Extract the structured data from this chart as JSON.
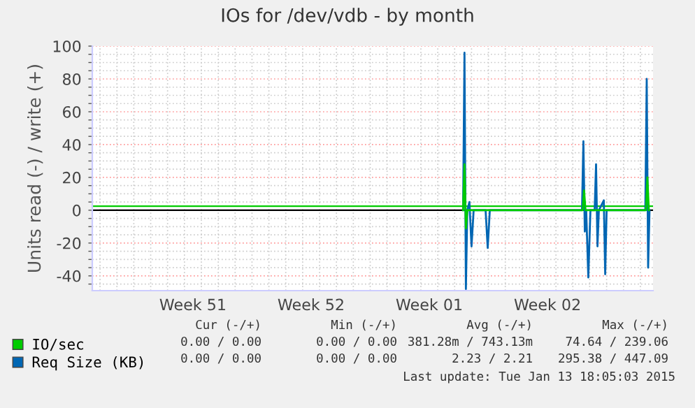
{
  "chart_data": {
    "type": "line",
    "title": "IOs for /dev/vdb - by month",
    "ylabel": "Units read (-) / write (+)",
    "xlim": [
      "2014-12-12T13:00",
      "2015-01-14T18:00"
    ],
    "xticks": [
      {
        "value": "2014-12-13",
        "label": null
      },
      {
        "value": "2014-12-14",
        "label": null
      },
      {
        "value": "2014-12-15",
        "label": null
      },
      {
        "value": "2014-12-16",
        "label": null
      },
      {
        "value": "2014-12-17",
        "label": null
      },
      {
        "value": "2014-12-18",
        "label": null
      },
      {
        "value": "2014-12-18T12:00",
        "label": "Week 51"
      },
      {
        "value": "2014-12-19",
        "label": null
      },
      {
        "value": "2014-12-20",
        "label": null
      },
      {
        "value": "2014-12-21",
        "label": null
      },
      {
        "value": "2014-12-22",
        "label": null
      },
      {
        "value": "2014-12-23",
        "label": null
      },
      {
        "value": "2014-12-24",
        "label": null
      },
      {
        "value": "2014-12-25",
        "label": null
      },
      {
        "value": "2014-12-25T12:00",
        "label": "Week 52"
      },
      {
        "value": "2014-12-26",
        "label": null
      },
      {
        "value": "2014-12-27",
        "label": null
      },
      {
        "value": "2014-12-28",
        "label": null
      },
      {
        "value": "2014-12-29",
        "label": null
      },
      {
        "value": "2014-12-30",
        "label": null
      },
      {
        "value": "2014-12-31",
        "label": null
      },
      {
        "value": "2015-01-01",
        "label": null
      },
      {
        "value": "2015-01-01T12:00",
        "label": "Week 01"
      },
      {
        "value": "2015-01-02",
        "label": null
      },
      {
        "value": "2015-01-03",
        "label": null
      },
      {
        "value": "2015-01-04",
        "label": null
      },
      {
        "value": "2015-01-05",
        "label": null
      },
      {
        "value": "2015-01-06",
        "label": null
      },
      {
        "value": "2015-01-07",
        "label": null
      },
      {
        "value": "2015-01-08",
        "label": null
      },
      {
        "value": "2015-01-08T12:00",
        "label": "Week 02"
      },
      {
        "value": "2015-01-09",
        "label": null
      },
      {
        "value": "2015-01-10",
        "label": null
      },
      {
        "value": "2015-01-11",
        "label": null
      },
      {
        "value": "2015-01-12",
        "label": null
      },
      {
        "value": "2015-01-13",
        "label": null
      },
      {
        "value": "2015-01-14",
        "label": null
      }
    ],
    "ylim": [
      -49,
      100
    ],
    "yticks": [
      {
        "value": -45,
        "label": null
      },
      -40,
      {
        "value": -35,
        "label": null
      },
      {
        "value": -30,
        "label": null
      },
      {
        "value": -25,
        "label": null
      },
      -20,
      {
        "value": -15,
        "label": null
      },
      {
        "value": -10,
        "label": null
      },
      {
        "value": -5,
        "label": null
      },
      0,
      {
        "value": 5,
        "label": null
      },
      {
        "value": 10,
        "label": null
      },
      {
        "value": 15,
        "label": null
      },
      20,
      {
        "value": 25,
        "label": null
      },
      {
        "value": 30,
        "label": null
      },
      {
        "value": 35,
        "label": null
      },
      40,
      {
        "value": 45,
        "label": null
      },
      {
        "value": 50,
        "label": null
      },
      {
        "value": 55,
        "label": null
      },
      60,
      {
        "value": 65,
        "label": null
      },
      {
        "value": 70,
        "label": null
      },
      {
        "value": 75,
        "label": null
      },
      80,
      {
        "value": 85,
        "label": null
      },
      {
        "value": 90,
        "label": null
      },
      {
        "value": 95,
        "label": null
      },
      100
    ],
    "grid": true,
    "legend": "bottom left",
    "marker": "none",
    "line_style": "solid",
    "ref_lines": [
      {
        "axis": "y",
        "value": 0,
        "color": "#000000"
      },
      {
        "axis": "y",
        "value": 2.5,
        "color": "#00cc00"
      }
    ],
    "series": [
      {
        "name": "IO/sec",
        "color": "#00cc00",
        "x": [
          "2015-01-03T12:00",
          "2015-01-03T14:00",
          "2015-01-03T16:00",
          "2015-01-03T18:00",
          "2015-01-10T14:00",
          "2015-01-10T16:00",
          "2015-01-10T18:00",
          "2015-01-14T08:00",
          "2015-01-14T10:00",
          "2015-01-14T12:00"
        ],
        "values": [
          0,
          28,
          -11,
          0,
          0,
          12,
          0,
          0,
          20,
          0
        ]
      },
      {
        "name": "Req Size (KB)",
        "color": "#0066b3",
        "x": [
          "2015-01-03T12:00",
          "2015-01-03T14:00",
          "2015-01-03T16:00",
          "2015-01-03T18:00",
          "2015-01-03T21:00",
          "2015-01-04T00:00",
          "2015-01-04T03:00",
          "2015-01-04T20:00",
          "2015-01-04T23:00",
          "2015-01-05T02:00",
          "2015-01-10T13:00",
          "2015-01-10T15:00",
          "2015-01-10T17:00",
          "2015-01-10T19:00",
          "2015-01-10T22:00",
          "2015-01-11T01:00",
          "2015-01-11T07:00",
          "2015-01-11T09:00",
          "2015-01-11T11:00",
          "2015-01-11T13:00",
          "2015-01-11T20:00",
          "2015-01-11T22:00",
          "2015-01-12T00:00",
          "2015-01-14T07:00",
          "2015-01-14T09:00",
          "2015-01-14T11:00",
          "2015-01-14T13:00"
        ],
        "values": [
          0,
          96,
          -48,
          0,
          5,
          -22,
          0,
          0,
          -23,
          0,
          0,
          42,
          -13,
          0,
          -41,
          0,
          0,
          28,
          -22,
          0,
          6,
          -39,
          0,
          0,
          80,
          -35,
          0
        ]
      }
    ],
    "annotations": [
      "Cur (-/+)",
      "Min (-/+)",
      "Avg (-/+)",
      "Max (-/+)",
      "0.00 / 0.00",
      "0.00 / 0.00",
      "381.28m / 743.13m",
      "74.64 / 239.06",
      "0.00 / 0.00",
      "0.00 / 0.00",
      "2.23 / 2.21",
      "295.38 / 447.09",
      "Last update: Tue Jan 13 18:05:03 2015"
    ]
  }
}
